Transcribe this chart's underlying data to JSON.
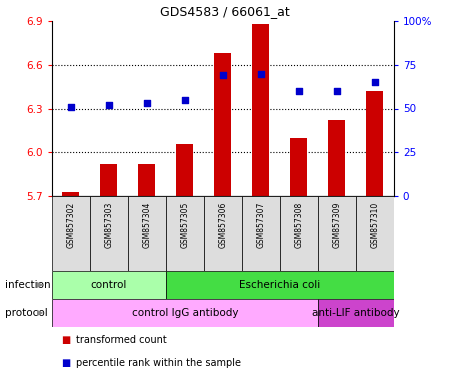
{
  "title": "GDS4583 / 66061_at",
  "samples": [
    "GSM857302",
    "GSM857303",
    "GSM857304",
    "GSM857305",
    "GSM857306",
    "GSM857307",
    "GSM857308",
    "GSM857309",
    "GSM857310"
  ],
  "transformed_count": [
    5.73,
    5.92,
    5.92,
    6.06,
    6.68,
    6.88,
    6.1,
    6.22,
    6.42
  ],
  "percentile_rank": [
    51,
    52,
    53,
    55,
    69,
    70,
    60,
    60,
    65
  ],
  "ylim_left": [
    5.7,
    6.9
  ],
  "ylim_right": [
    0,
    100
  ],
  "yticks_left": [
    5.7,
    6.0,
    6.3,
    6.6,
    6.9
  ],
  "yticks_right": [
    0,
    25,
    50,
    75,
    100
  ],
  "ytick_labels_right": [
    "0",
    "25",
    "50",
    "75",
    "100%"
  ],
  "bar_color": "#cc0000",
  "dot_color": "#0000cc",
  "infection_groups": [
    {
      "label": "control",
      "start": 0,
      "end": 3,
      "color": "#aaffaa"
    },
    {
      "label": "Escherichia coli",
      "start": 3,
      "end": 9,
      "color": "#44dd44"
    }
  ],
  "protocol_groups": [
    {
      "label": "control IgG antibody",
      "start": 0,
      "end": 7,
      "color": "#ffaaff"
    },
    {
      "label": "anti-LIF antibody",
      "start": 7,
      "end": 9,
      "color": "#cc44cc"
    }
  ],
  "infection_label": "infection",
  "protocol_label": "protocol",
  "legend_items": [
    {
      "color": "#cc0000",
      "label": "transformed count"
    },
    {
      "color": "#0000cc",
      "label": "percentile rank within the sample"
    }
  ],
  "sample_bg_color": "#dddddd",
  "grid_yticks": [
    6.0,
    6.3,
    6.6
  ]
}
